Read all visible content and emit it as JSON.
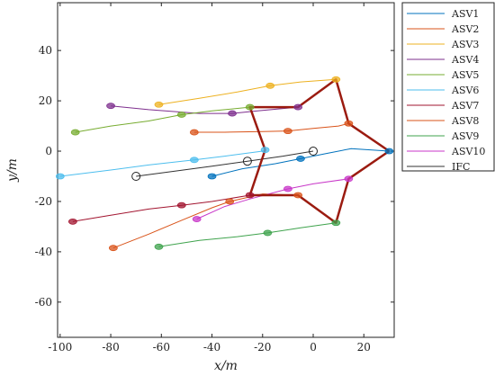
{
  "chart_data": {
    "type": "line",
    "xlabel": "x/m",
    "ylabel": "y/m",
    "xlim": [
      -101,
      32
    ],
    "ylim": [
      -74,
      59
    ],
    "xticks": [
      -100,
      -80,
      -60,
      -40,
      -20,
      0,
      20
    ],
    "yticks": [
      -60,
      -40,
      -20,
      0,
      20,
      40
    ],
    "grid": false,
    "legend_position": "outside-right",
    "series": [
      {
        "name": "ASV1",
        "color": "#0072BD",
        "points": [
          [
            -40,
            -10
          ],
          [
            -28,
            -7
          ],
          [
            -15,
            -5
          ],
          [
            -5,
            -3
          ],
          [
            5,
            -1
          ],
          [
            15,
            1
          ],
          [
            30,
            0
          ]
        ]
      },
      {
        "name": "ASV2",
        "color": "#D95319",
        "points": [
          [
            -47,
            7.5
          ],
          [
            -35,
            7.5
          ],
          [
            -20,
            7.8
          ],
          [
            -10,
            8
          ],
          [
            0,
            9
          ],
          [
            10,
            10
          ],
          [
            14,
            11
          ],
          [
            30,
            0
          ]
        ]
      },
      {
        "name": "ASV3",
        "color": "#EDB120",
        "points": [
          [
            -61,
            18.5
          ],
          [
            -45,
            21
          ],
          [
            -30,
            23.5
          ],
          [
            -17,
            26
          ],
          [
            -5,
            27.5
          ],
          [
            9,
            28.5
          ]
        ]
      },
      {
        "name": "ASV4",
        "color": "#7E2F8E",
        "points": [
          [
            -80,
            18
          ],
          [
            -65,
            16.5
          ],
          [
            -45,
            15
          ],
          [
            -32,
            15
          ],
          [
            -22,
            16
          ],
          [
            -6,
            17.5
          ]
        ]
      },
      {
        "name": "ASV5",
        "color": "#77AC30",
        "points": [
          [
            -94,
            7.5
          ],
          [
            -80,
            10
          ],
          [
            -65,
            12
          ],
          [
            -52,
            14.5
          ],
          [
            -40,
            16
          ],
          [
            -25,
            17.5
          ]
        ]
      },
      {
        "name": "ASV6",
        "color": "#4DBEEE",
        "points": [
          [
            -100,
            -10
          ],
          [
            -80,
            -7.5
          ],
          [
            -65,
            -5.5
          ],
          [
            -47,
            -3.5
          ],
          [
            -35,
            -2
          ],
          [
            -20,
            0
          ],
          [
            -19,
            0.5
          ]
        ]
      },
      {
        "name": "ASV7",
        "color": "#A2142F",
        "points": [
          [
            -95,
            -28
          ],
          [
            -80,
            -25.5
          ],
          [
            -65,
            -23
          ],
          [
            -52,
            -21.5
          ],
          [
            -40,
            -20
          ],
          [
            -25,
            -17.5
          ]
        ]
      },
      {
        "name": "ASV8",
        "color": "#D95319",
        "points": [
          [
            -79,
            -38.5
          ],
          [
            -65,
            -33
          ],
          [
            -52,
            -27.5
          ],
          [
            -40,
            -22.5
          ],
          [
            -33,
            -20
          ],
          [
            -20,
            -17
          ],
          [
            -6,
            -17.5
          ]
        ]
      },
      {
        "name": "ASV9",
        "color": "#3FA34D",
        "points": [
          [
            -61,
            -38
          ],
          [
            -45,
            -35.5
          ],
          [
            -30,
            -34
          ],
          [
            -18,
            -32.5
          ],
          [
            -5,
            -30.5
          ],
          [
            9,
            -28.5
          ]
        ]
      },
      {
        "name": "ASV10",
        "color": "#C837C8",
        "points": [
          [
            -46,
            -27
          ],
          [
            -35,
            -22
          ],
          [
            -25,
            -19
          ],
          [
            -10,
            -15
          ],
          [
            0,
            -13
          ],
          [
            14,
            -11
          ]
        ]
      },
      {
        "name": "IFC",
        "color": "#333333",
        "points": [
          [
            -70,
            -10
          ],
          [
            -55,
            -8
          ],
          [
            -40,
            -6
          ],
          [
            -26,
            -4
          ],
          [
            -12,
            -2
          ],
          [
            0,
            0
          ]
        ]
      }
    ],
    "ifc_circles": [
      [
        -70,
        -10
      ],
      [
        -26,
        -4
      ],
      [
        0,
        0
      ]
    ],
    "formation": [
      [
        30,
        0
      ],
      [
        14,
        11
      ],
      [
        9,
        28.5
      ],
      [
        -6,
        17.5
      ],
      [
        -25,
        17.5
      ],
      [
        -19,
        0.5
      ],
      [
        -25,
        -17.5
      ],
      [
        -6,
        -17.5
      ],
      [
        9,
        -28.5
      ],
      [
        14,
        -11
      ],
      [
        30,
        0
      ]
    ],
    "formation_color": "#9B1B10",
    "markers": [
      {
        "series": "ASV1",
        "points": [
          [
            -40,
            -10
          ],
          [
            -5,
            -3
          ],
          [
            30,
            0
          ]
        ]
      },
      {
        "series": "ASV2",
        "points": [
          [
            -47,
            7.5
          ],
          [
            -10,
            8
          ],
          [
            14,
            11
          ]
        ]
      },
      {
        "series": "ASV3",
        "points": [
          [
            -61,
            18.5
          ],
          [
            -17,
            26
          ],
          [
            9,
            28.5
          ]
        ]
      },
      {
        "series": "ASV4",
        "points": [
          [
            -80,
            18
          ],
          [
            -32,
            15
          ],
          [
            -6,
            17.5
          ]
        ]
      },
      {
        "series": "ASV5",
        "points": [
          [
            -94,
            7.5
          ],
          [
            -52,
            14.5
          ],
          [
            -25,
            17.5
          ]
        ]
      },
      {
        "series": "ASV6",
        "points": [
          [
            -100,
            -10
          ],
          [
            -47,
            -3.5
          ],
          [
            -19,
            0.5
          ]
        ]
      },
      {
        "series": "ASV7",
        "points": [
          [
            -95,
            -28
          ],
          [
            -52,
            -21.5
          ],
          [
            -25,
            -17.5
          ]
        ]
      },
      {
        "series": "ASV8",
        "points": [
          [
            -79,
            -38.5
          ],
          [
            -33,
            -20
          ],
          [
            -6,
            -17.5
          ]
        ]
      },
      {
        "series": "ASV9",
        "points": [
          [
            -61,
            -38
          ],
          [
            -18,
            -32.5
          ],
          [
            9,
            -28.5
          ]
        ]
      },
      {
        "series": "ASV10",
        "points": [
          [
            -46,
            -27
          ],
          [
            -10,
            -15
          ],
          [
            14,
            -11
          ]
        ]
      }
    ]
  }
}
